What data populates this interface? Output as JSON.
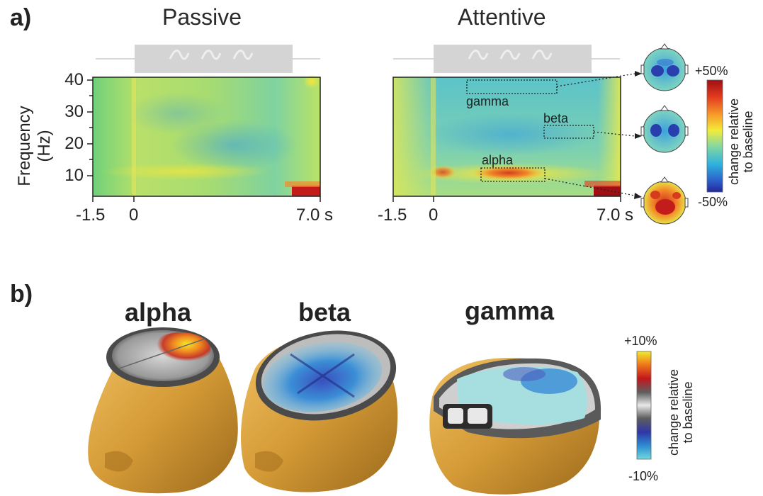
{
  "panel_a": {
    "letter": "a)",
    "passive_title": "Passive",
    "attentive_title": "Attentive",
    "ylabel": "Frequency (Hz)",
    "y_ticks": [
      "40",
      "30",
      "20",
      "10"
    ],
    "x_ticks": [
      "-1.5",
      "0",
      "7.0 s"
    ],
    "band_labels": {
      "gamma": "gamma",
      "beta": "beta",
      "alpha": "alpha"
    },
    "colorbar": {
      "top": "+50%",
      "bottom": "-50%",
      "line1": "change relative",
      "line2": "to baseline"
    }
  },
  "panel_b": {
    "letter": "b)",
    "titles": {
      "alpha": "alpha",
      "beta": "beta",
      "gamma": "gamma"
    },
    "colorbar": {
      "top": "+10%",
      "bottom": "-10%",
      "line1": "change relative",
      "line2": "to baseline"
    }
  },
  "colors": {
    "low": "#1e2fa0",
    "mid_low": "#2aa0d8",
    "mid": "#f2e63a",
    "high": "#b3121a",
    "skin": "#d59a36"
  }
}
